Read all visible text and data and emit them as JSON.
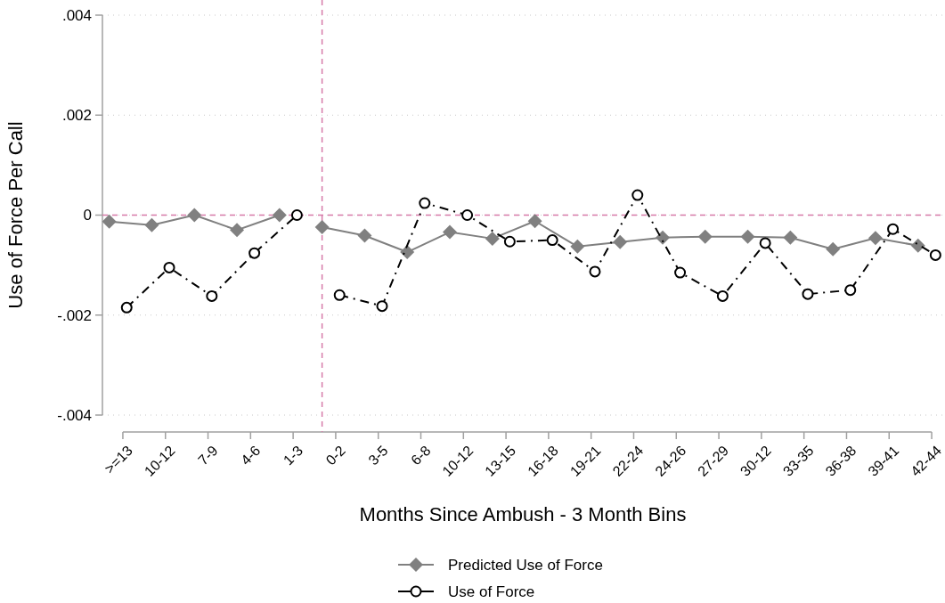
{
  "chart_data": {
    "type": "line",
    "xlabel": "Months Since Ambush - 3 Month Bins",
    "ylabel": "Use of Force Per Call",
    "categories": [
      ">=13",
      "10-12",
      "7-9",
      "4-6",
      "1-3",
      "0-2",
      "3-5",
      "6-8",
      "10-12",
      "13-15",
      "16-18",
      "19-21",
      "22-24",
      "24-26",
      "27-29",
      "30-12",
      "33-35",
      "36-38",
      "39-41",
      "42-44"
    ],
    "ylim": [
      -0.004,
      0.004
    ],
    "yticks": [
      {
        "value": -0.004,
        "label": "-.004"
      },
      {
        "value": -0.002,
        "label": "-.002"
      },
      0,
      {
        "value": 0.002,
        "label": ".002"
      },
      {
        "value": 0.004,
        "label": ".004"
      }
    ],
    "grid": "y",
    "legend": "bottom",
    "ref_lines": [
      {
        "axis": "y",
        "value": 0,
        "color": "#d67aa8",
        "line_style": "dashed"
      },
      {
        "axis": "x",
        "value": "0-2",
        "color": "#d67aa8",
        "line_style": "dashed"
      }
    ],
    "series": [
      {
        "name": "Predicted Use of Force",
        "color": "#808080",
        "marker": "diamond",
        "line_style": "solid",
        "values": [
          -0.00013,
          -0.0002,
          0,
          -0.0003,
          0,
          -0.00024,
          -0.00041,
          -0.00074,
          -0.00034,
          -0.00047,
          -0.00012,
          -0.00063,
          -0.00054,
          -0.00045,
          -0.00043,
          -0.00043,
          -0.00045,
          -0.00068,
          -0.00046,
          -0.00061
        ]
      },
      {
        "name": "Use of Force",
        "color": "#000000",
        "marker": "circle",
        "line_style": "dashed",
        "values": [
          -0.00185,
          -0.00105,
          -0.00162,
          -0.00076,
          0,
          -0.0016,
          -0.00182,
          0.00024,
          0,
          -0.00053,
          -0.0005,
          -0.00113,
          0.0004,
          -0.00115,
          -0.00162,
          -0.00056,
          -0.00158,
          -0.0015,
          -0.00028,
          -0.0008
        ]
      }
    ]
  }
}
